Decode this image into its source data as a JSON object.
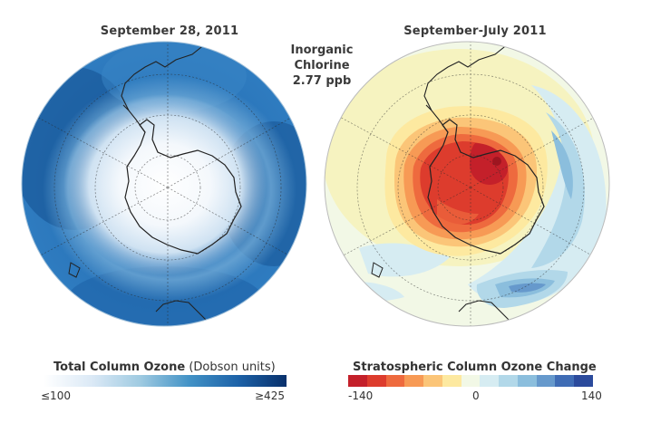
{
  "left_map": {
    "title": "September 28, 2011",
    "legend_title": "Total Column Ozone",
    "legend_units": "(Dobson units)",
    "tick_min": "≤100",
    "tick_max": "≥425",
    "colors": [
      "#ffffff",
      "#dbe9f6",
      "#9ecae1",
      "#4292c6",
      "#1d62a8",
      "#08306b"
    ]
  },
  "annotation": {
    "line1": "Inorganic",
    "line2": "Chlorine",
    "line3": "2.77 ppb"
  },
  "right_map": {
    "title": "September-July 2011",
    "legend_title": "Stratospheric Column Ozone Change",
    "tick_min": "-140",
    "tick_mid": "0",
    "tick_max": "140",
    "colors": [
      "#c4202a",
      "#dd3c2d",
      "#ee6a3e",
      "#f79a55",
      "#fbc578",
      "#fde9a0",
      "#f2f8e6",
      "#d6ecf2",
      "#b2d8e9",
      "#8bbedd",
      "#6699cc",
      "#3f6cb5",
      "#2b4a9c"
    ]
  }
}
